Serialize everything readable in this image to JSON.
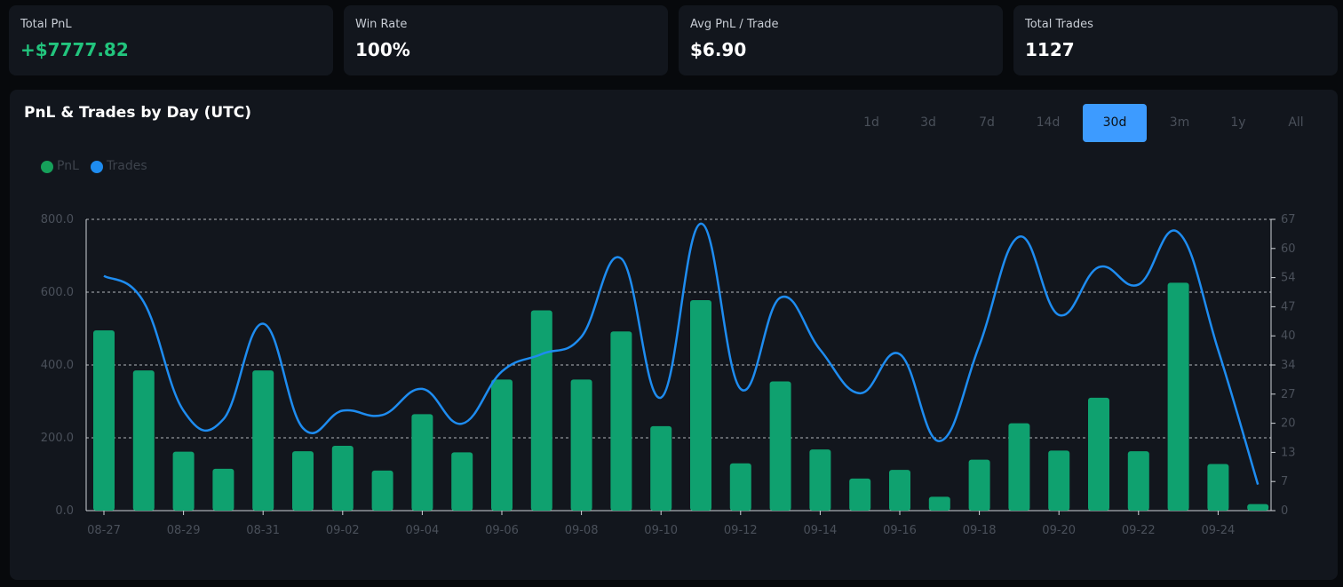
{
  "stats": [
    {
      "label": "Total PnL",
      "value": "+$7777.82",
      "positive": true
    },
    {
      "label": "Win Rate",
      "value": "100%",
      "positive": false
    },
    {
      "label": "Avg PnL / Trade",
      "value": "$6.90",
      "positive": false
    },
    {
      "label": "Total Trades",
      "value": "1127",
      "positive": false
    }
  ],
  "panel": {
    "title": "PnL & Trades by Day (UTC)",
    "ranges": [
      "1d",
      "3d",
      "7d",
      "14d",
      "30d",
      "3m",
      "1y",
      "All"
    ],
    "active_range": "30d"
  },
  "legend": [
    {
      "label": "PnL",
      "color": "#16a05a"
    },
    {
      "label": "Trades",
      "color": "#1e8cf0"
    }
  ],
  "chart_data": {
    "type": "bar",
    "categories": [
      "08-27",
      "08-28",
      "08-29",
      "08-30",
      "08-31",
      "09-01",
      "09-02",
      "09-03",
      "09-04",
      "09-05",
      "09-06",
      "09-07",
      "09-08",
      "09-09",
      "09-10",
      "09-11",
      "09-12",
      "09-13",
      "09-14",
      "09-15",
      "09-16",
      "09-17",
      "09-18",
      "09-19",
      "09-20",
      "09-21",
      "09-22",
      "09-23",
      "09-24",
      "09-25"
    ],
    "x_tick_labels": [
      "08-27",
      "08-29",
      "08-31",
      "09-02",
      "09-04",
      "09-06",
      "09-08",
      "09-10",
      "09-12",
      "09-14",
      "09-16",
      "09-18",
      "09-20",
      "09-22",
      "09-24"
    ],
    "series": [
      {
        "name": "PnL",
        "type": "bar",
        "axis": "left",
        "color": "#0fa16f",
        "values": [
          495,
          385,
          162,
          115,
          385,
          163,
          178,
          110,
          265,
          160,
          360,
          550,
          360,
          492,
          232,
          578,
          130,
          355,
          168,
          88,
          112,
          38,
          140,
          240,
          165,
          310,
          163,
          626,
          128,
          18
        ]
      },
      {
        "name": "Trades",
        "type": "line",
        "axis": "right",
        "color": "#1e8cf0",
        "values": [
          54,
          48,
          23,
          21,
          43,
          19,
          23,
          22,
          28,
          20,
          32,
          36,
          40,
          58,
          26,
          66,
          28,
          49,
          37,
          27,
          36,
          16,
          38,
          63,
          45,
          56,
          52,
          64,
          37,
          6
        ]
      }
    ],
    "y_left": {
      "ticks": [
        "800.0",
        "600.0",
        "400.0",
        "200.0",
        "0.0"
      ],
      "ylim": [
        0,
        800
      ]
    },
    "y_right": {
      "ticks": [
        "67",
        "60",
        "54",
        "47",
        "40",
        "34",
        "27",
        "20",
        "13",
        "7",
        "0"
      ],
      "ylim": [
        0,
        67
      ]
    },
    "grid": true
  }
}
